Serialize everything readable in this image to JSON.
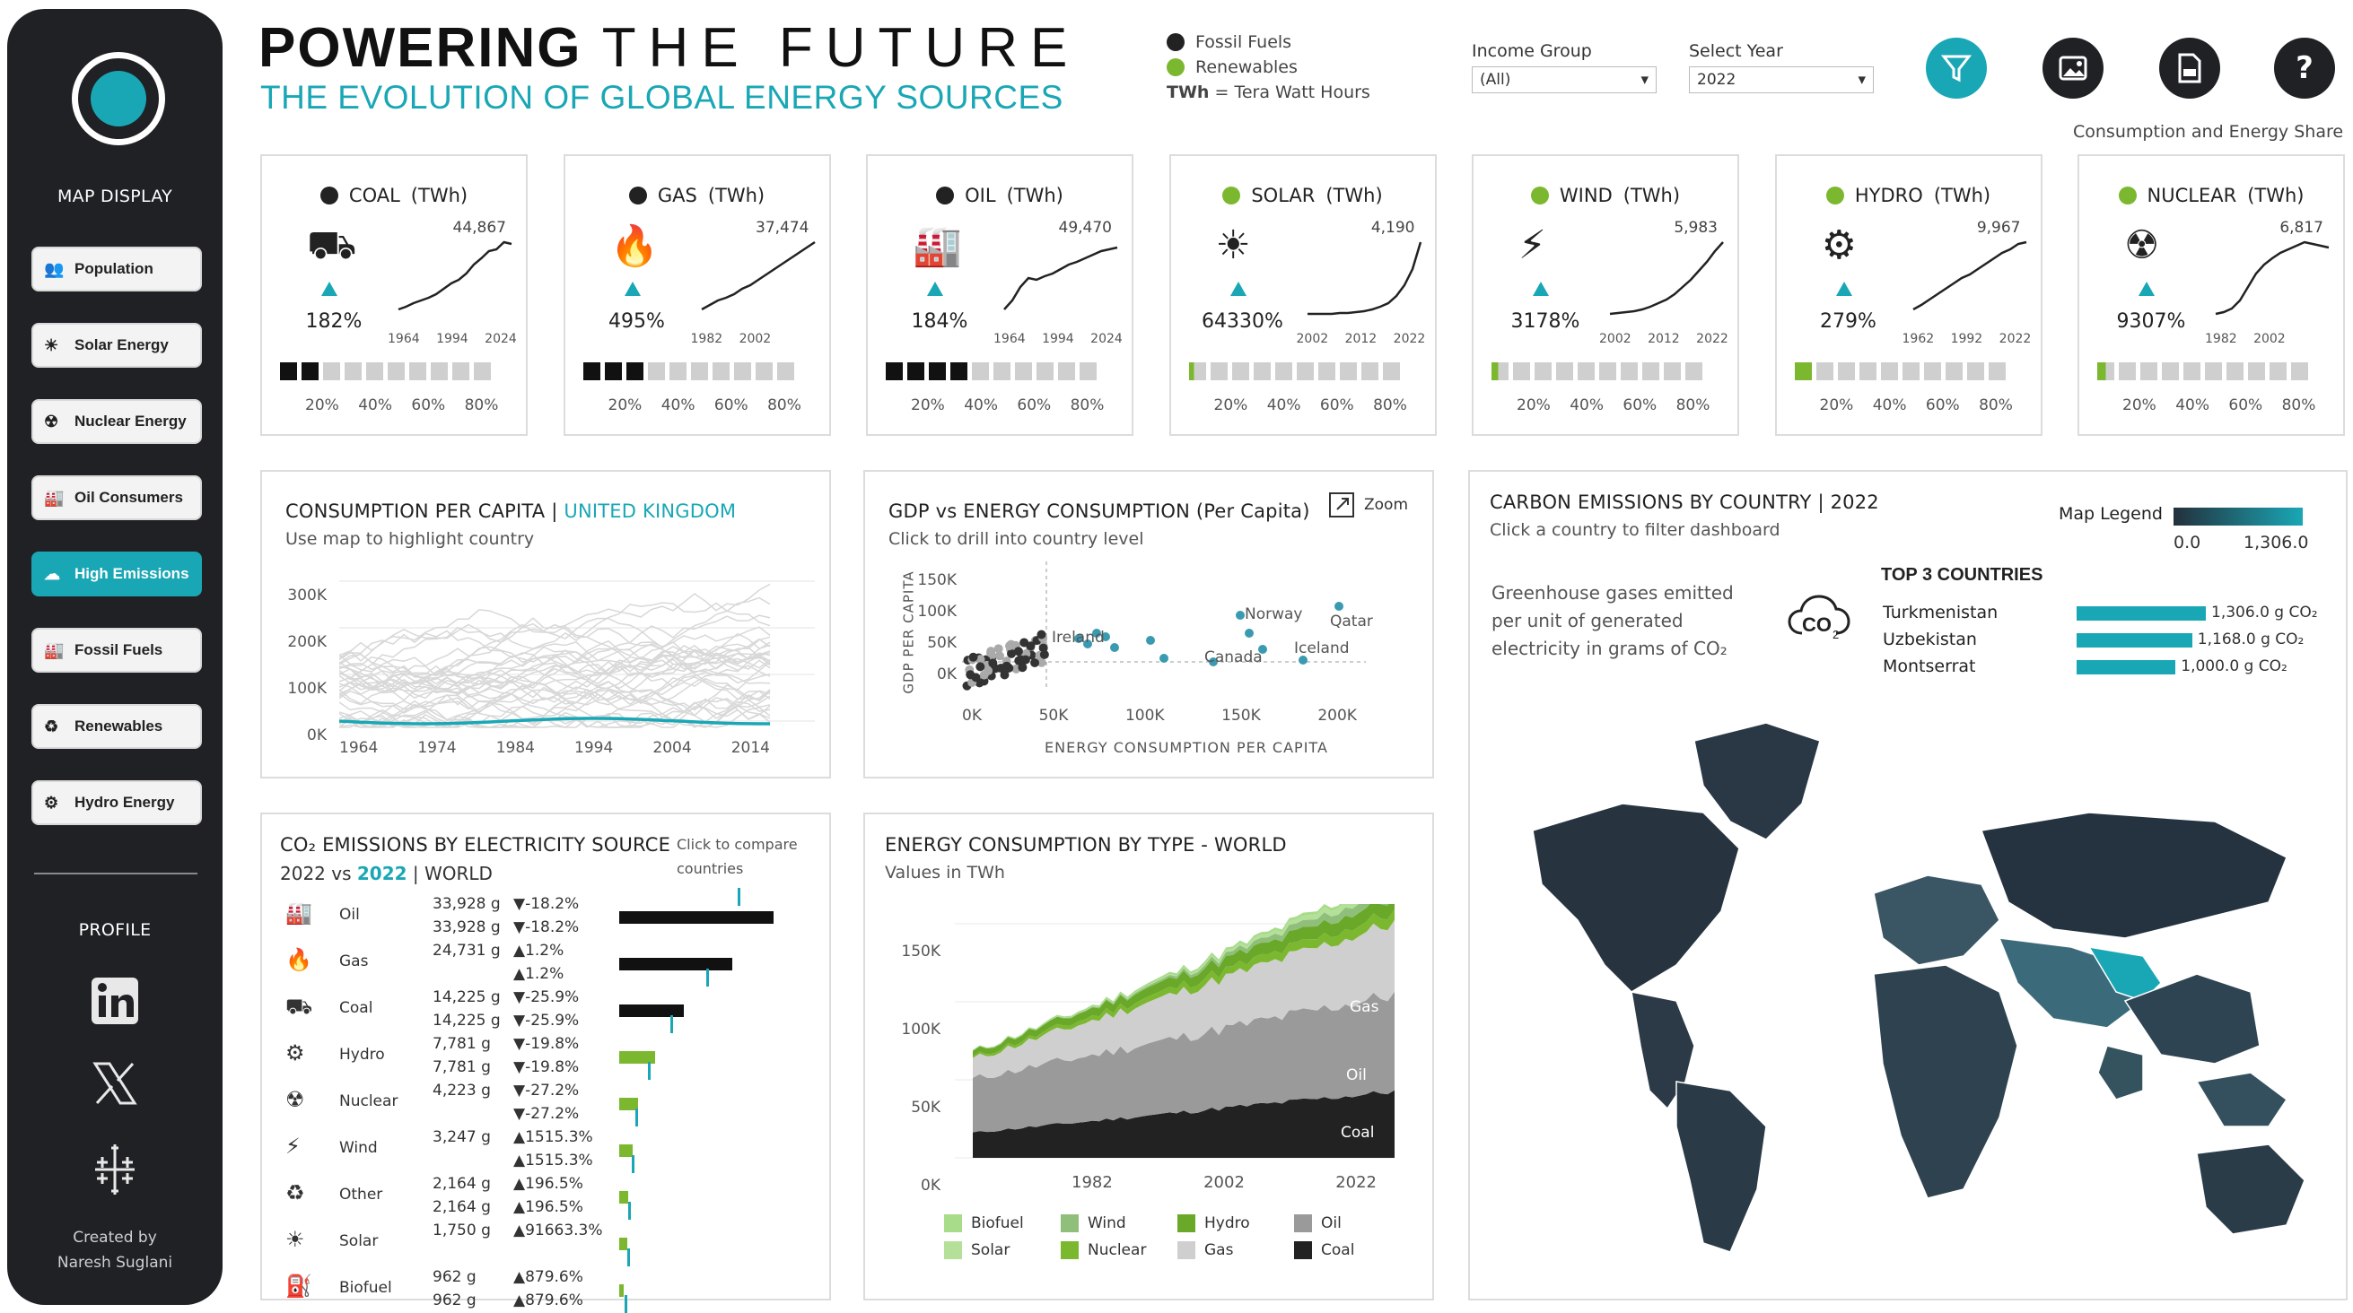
{
  "sidebar": {
    "map_display_label": "MAP DISPLAY",
    "items": [
      {
        "label": "Population",
        "icon": "population-icon",
        "glyph": "👥",
        "active": false
      },
      {
        "label": "Solar Energy",
        "icon": "solar-panel-icon",
        "glyph": "☀",
        "active": false
      },
      {
        "label": "Nuclear Energy",
        "icon": "nuclear-icon",
        "glyph": "☢",
        "active": false
      },
      {
        "label": "Oil Consumers",
        "icon": "oil-refinery-icon",
        "glyph": "🏭",
        "active": false
      },
      {
        "label": "High Emissions",
        "icon": "co2-cloud-icon",
        "glyph": "☁",
        "active": true
      },
      {
        "label": "Fossil Fuels",
        "icon": "factory-icon",
        "glyph": "🏭",
        "active": false
      },
      {
        "label": "Renewables",
        "icon": "renewable-icon",
        "glyph": "♻",
        "active": false
      },
      {
        "label": "Hydro Energy",
        "icon": "hydro-icon",
        "glyph": "⚙",
        "active": false
      }
    ],
    "profile_label": "PROFILE",
    "credit_line1": "Created by",
    "credit_line2": "Naresh Suglani"
  },
  "header": {
    "title_bold": "POWERING",
    "title_light": "THE FUTURE",
    "subtitle": "THE EVOLUTION OF GLOBAL ENERGY SOURCES",
    "legend": [
      {
        "label": "Fossil Fuels",
        "color": "#222222"
      },
      {
        "label": "Renewables",
        "color": "#7cb82f"
      }
    ],
    "twh_abbr": "TWh",
    "twh_def": " = Tera Watt Hours",
    "income_group_label": "Income Group",
    "income_group_value": "(All)",
    "year_label": "Select Year",
    "year_value": "2022",
    "caption": "Consumption and Energy Share"
  },
  "kpis": [
    {
      "name": "COAL",
      "unit": "(TWh)",
      "type": "fossil",
      "max": "44,867",
      "pct": "182%",
      "years": "1964 1994 2024",
      "share": 2,
      "spark": [
        5,
        8,
        12,
        15,
        18,
        22,
        28,
        34,
        38,
        45,
        55,
        62,
        70,
        72,
        80,
        78
      ]
    },
    {
      "name": "GAS",
      "unit": "(TWh)",
      "type": "fossil",
      "max": "37,474",
      "pct": "495%",
      "years": "1982 2002",
      "share": 3,
      "spark": [
        5,
        10,
        15,
        18,
        22,
        28,
        32,
        38,
        44,
        50,
        56,
        62,
        68,
        74,
        80
      ]
    },
    {
      "name": "OIL",
      "unit": "(TWh)",
      "type": "fossil",
      "max": "49,470",
      "pct": "184%",
      "years": "1964 1994 2024",
      "share": 4,
      "spark": [
        5,
        15,
        30,
        40,
        38,
        42,
        45,
        50,
        55,
        58,
        62,
        66,
        70,
        72,
        74
      ]
    },
    {
      "name": "SOLAR",
      "unit": "(TWh)",
      "type": "renew",
      "max": "4,190",
      "pct": "64330%",
      "years": "2002 2012 2022",
      "share": 0.3,
      "spark": [
        0,
        0,
        0,
        0,
        1,
        1,
        2,
        3,
        5,
        8,
        12,
        20,
        32,
        50,
        80
      ]
    },
    {
      "name": "WIND",
      "unit": "(TWh)",
      "type": "renew",
      "max": "5,983",
      "pct": "3178%",
      "years": "2002 2012 2022",
      "share": 0.4,
      "spark": [
        0,
        1,
        2,
        3,
        5,
        8,
        12,
        16,
        22,
        30,
        38,
        48,
        58,
        70,
        80
      ]
    },
    {
      "name": "HYDRO",
      "unit": "(TWh)",
      "type": "renew",
      "max": "9,967",
      "pct": "279%",
      "years": "1962 1992 2022",
      "share": 1,
      "spark": [
        5,
        10,
        16,
        22,
        28,
        34,
        40,
        44,
        50,
        56,
        62,
        68,
        72,
        78,
        80
      ]
    },
    {
      "name": "NUCLEAR",
      "unit": "(TWh)",
      "type": "renew",
      "max": "6,817",
      "pct": "9307%",
      "years": "1982 2002",
      "share": 0.5,
      "spark": [
        0,
        2,
        6,
        15,
        30,
        45,
        55,
        62,
        68,
        72,
        76,
        80,
        78,
        76,
        74
      ]
    }
  ],
  "kpi_scale": "20% 40% 60% 80%",
  "consumption": {
    "title": "CONSUMPTION PER CAPITA",
    "country": "UNITED KINGDOM",
    "subtitle": "Use map to highlight country",
    "y_ticks": [
      "300K",
      "200K",
      "100K",
      "0K"
    ],
    "x_ticks": [
      "1964",
      "1974",
      "1984",
      "1994",
      "2004",
      "2014"
    ]
  },
  "gdp": {
    "title": "GDP vs ENERGY CONSUMPTION  (Per Capita)",
    "zoom_label": "Zoom",
    "subtitle": "Click to drill into country level",
    "y_label": "GDP PER CAPITA",
    "x_label": "ENERGY CONSUMPTION PER CAPITA",
    "y_ticks": [
      "150K",
      "100K",
      "50K",
      "0K"
    ],
    "x_ticks": [
      "0K",
      "50K",
      "100K",
      "150K",
      "200K"
    ],
    "labels": [
      "Qatar",
      "Ireland",
      "Norway",
      "Iceland",
      "Canada"
    ]
  },
  "carbon": {
    "title": "CARBON EMISSIONS BY COUNTRY",
    "year": "2022",
    "subtitle": "Click a country to filter dashboard",
    "description": "Greenhouse gases emitted per unit of generated electricity in grams of CO₂",
    "legend_label": "Map Legend",
    "legend_min": "0.0",
    "legend_max": "1,306.0",
    "top_label": "TOP 3 COUNTRIES",
    "top": [
      {
        "country": "Turkmenistan",
        "value": 1306.0,
        "text": "1,306.0 g CO₂"
      },
      {
        "country": "Uzbekistan",
        "value": 1168.0,
        "text": "1,168.0 g CO₂"
      },
      {
        "country": "Montserrat",
        "value": 1000.0,
        "text": "1,000.0 g CO₂"
      }
    ]
  },
  "co2": {
    "title": "CO₂ EMISSIONS BY ELECTRICITY SOURCE",
    "compare_a": "2022 vs ",
    "compare_b": "2022",
    "scope": "WORLD",
    "hint_line1": "Click to compare",
    "hint_line2": "countries",
    "rows": [
      {
        "source": "Oil",
        "icon": "oil-refinery-icon",
        "v1": "33,928 g",
        "c1": "▼-18.2%",
        "v2": "33,928 g",
        "c2": "▼-18.2%",
        "bar": 100,
        "color": "#111"
      },
      {
        "source": "Gas",
        "icon": "flame-icon",
        "v1": "24,731 g",
        "c1": "▲1.2%",
        "v2": "",
        "c2": "▲1.2%",
        "bar": 73,
        "color": "#111"
      },
      {
        "source": "Coal",
        "icon": "coal-cart-icon",
        "v1": "14,225 g",
        "c1": "▼-25.9%",
        "v2": "14,225 g",
        "c2": "▼-25.9%",
        "bar": 42,
        "color": "#111"
      },
      {
        "source": "Hydro",
        "icon": "hydro-icon",
        "v1": "7,781 g",
        "c1": "▼-19.8%",
        "v2": "7,781 g",
        "c2": "▼-19.8%",
        "bar": 23,
        "color": "#7cb82f"
      },
      {
        "source": "Nuclear",
        "icon": "nuclear-icon",
        "v1": "4,223 g",
        "c1": "▼-27.2%",
        "v2": "",
        "c2": "▼-27.2%",
        "bar": 12,
        "color": "#7cb82f"
      },
      {
        "source": "Wind",
        "icon": "wind-turbine-icon",
        "v1": "3,247 g",
        "c1": "▲1515.3%",
        "v2": "",
        "c2": "▲1515.3%",
        "bar": 9,
        "color": "#7cb82f"
      },
      {
        "source": "Other",
        "icon": "renewable-icon",
        "v1": "2,164 g",
        "c1": "▲196.5%",
        "v2": "2,164 g",
        "c2": "▲196.5%",
        "bar": 6,
        "color": "#7cb82f"
      },
      {
        "source": "Solar",
        "icon": "solar-panel-icon",
        "v1": "1,750 g",
        "c1": "▲91663.3%",
        "v2": "",
        "c2": "",
        "bar": 5,
        "color": "#7cb82f"
      },
      {
        "source": "Biofuel",
        "icon": "biofuel-icon",
        "v1": "962 g",
        "c1": "▲879.6%",
        "v2": "962 g",
        "c2": "▲879.6%",
        "bar": 3,
        "color": "#7cb82f"
      }
    ]
  },
  "energy_type": {
    "title": "ENERGY CONSUMPTION BY TYPE  -  WORLD",
    "subtitle": "Values in TWh",
    "y_ticks": [
      "150K",
      "100K",
      "50K",
      "0K"
    ],
    "x_ticks": [
      "1982",
      "2002",
      "2022"
    ],
    "area_labels": [
      "Gas",
      "Oil",
      "Coal"
    ],
    "legend": [
      {
        "label": "Biofuel",
        "color": "#a8dc8a"
      },
      {
        "label": "Wind",
        "color": "#8fbf7a"
      },
      {
        "label": "Hydro",
        "color": "#6aa82a"
      },
      {
        "label": "Oil",
        "color": "#9a9a9a"
      },
      {
        "label": "Solar",
        "color": "#b4e09a"
      },
      {
        "label": "Nuclear",
        "color": "#7cb82f"
      },
      {
        "label": "Gas",
        "color": "#cfcfcf"
      },
      {
        "label": "Coal",
        "color": "#222222"
      }
    ]
  }
}
